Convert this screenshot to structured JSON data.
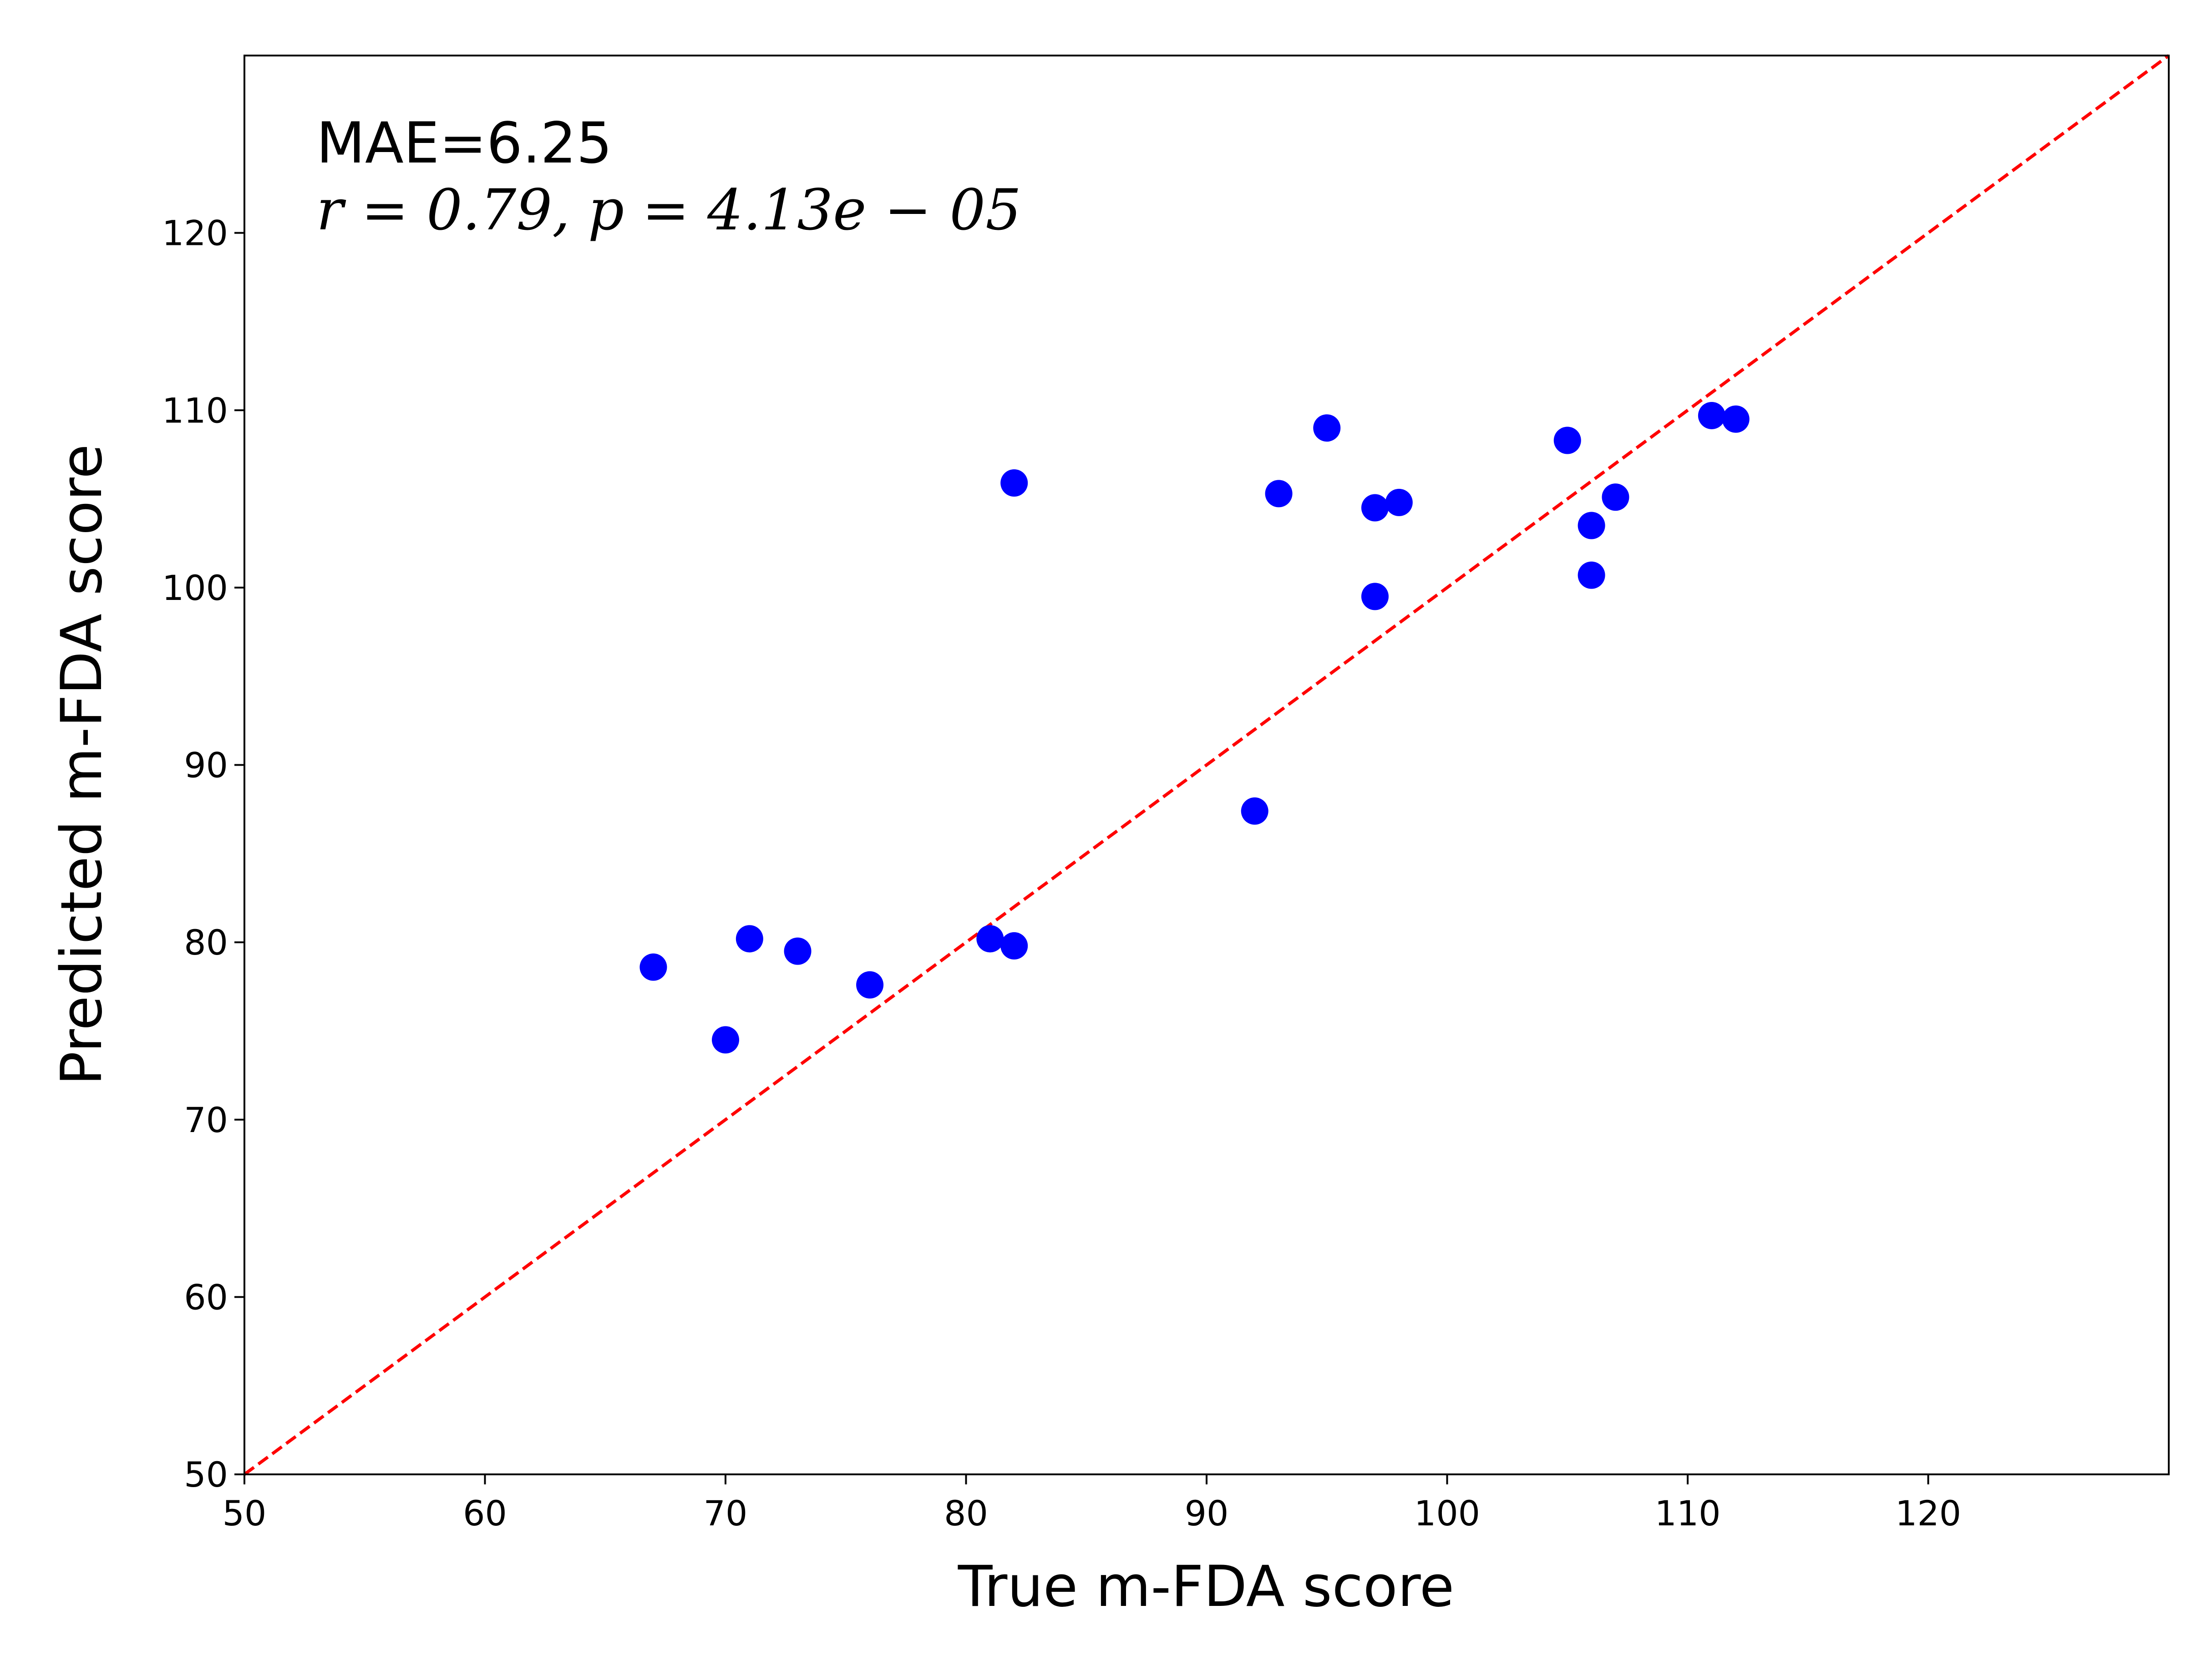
{
  "chart_data": {
    "type": "scatter",
    "xlabel": "True m-FDA score",
    "ylabel": "Predicted m-FDA score",
    "xlim": [
      50,
      130
    ],
    "ylim": [
      50,
      130
    ],
    "x_ticks": [
      50,
      60,
      70,
      80,
      90,
      100,
      110,
      120
    ],
    "y_ticks": [
      50,
      60,
      70,
      80,
      90,
      100,
      110,
      120
    ],
    "grid": false,
    "marker_color": "#0000ff",
    "reference_line": {
      "style": "dashed",
      "color": "#ff0000",
      "from": [
        50,
        50
      ],
      "to": [
        130,
        130
      ]
    },
    "annotations": [
      "MAE=6.25",
      "r = 0.79, p = 4.13e − 05"
    ],
    "points": [
      {
        "x": 67,
        "y": 78.6
      },
      {
        "x": 70,
        "y": 74.5
      },
      {
        "x": 71,
        "y": 80.2
      },
      {
        "x": 73,
        "y": 79.5
      },
      {
        "x": 76,
        "y": 77.6
      },
      {
        "x": 81,
        "y": 80.2
      },
      {
        "x": 82,
        "y": 79.8
      },
      {
        "x": 82,
        "y": 105.9
      },
      {
        "x": 92,
        "y": 87.4
      },
      {
        "x": 93,
        "y": 105.3
      },
      {
        "x": 95,
        "y": 109.0
      },
      {
        "x": 97,
        "y": 104.5
      },
      {
        "x": 97,
        "y": 99.5
      },
      {
        "x": 98,
        "y": 104.8
      },
      {
        "x": 105,
        "y": 108.3
      },
      {
        "x": 106,
        "y": 103.5
      },
      {
        "x": 106,
        "y": 100.7
      },
      {
        "x": 107,
        "y": 105.1
      },
      {
        "x": 111,
        "y": 109.7
      },
      {
        "x": 112,
        "y": 109.5
      }
    ]
  }
}
